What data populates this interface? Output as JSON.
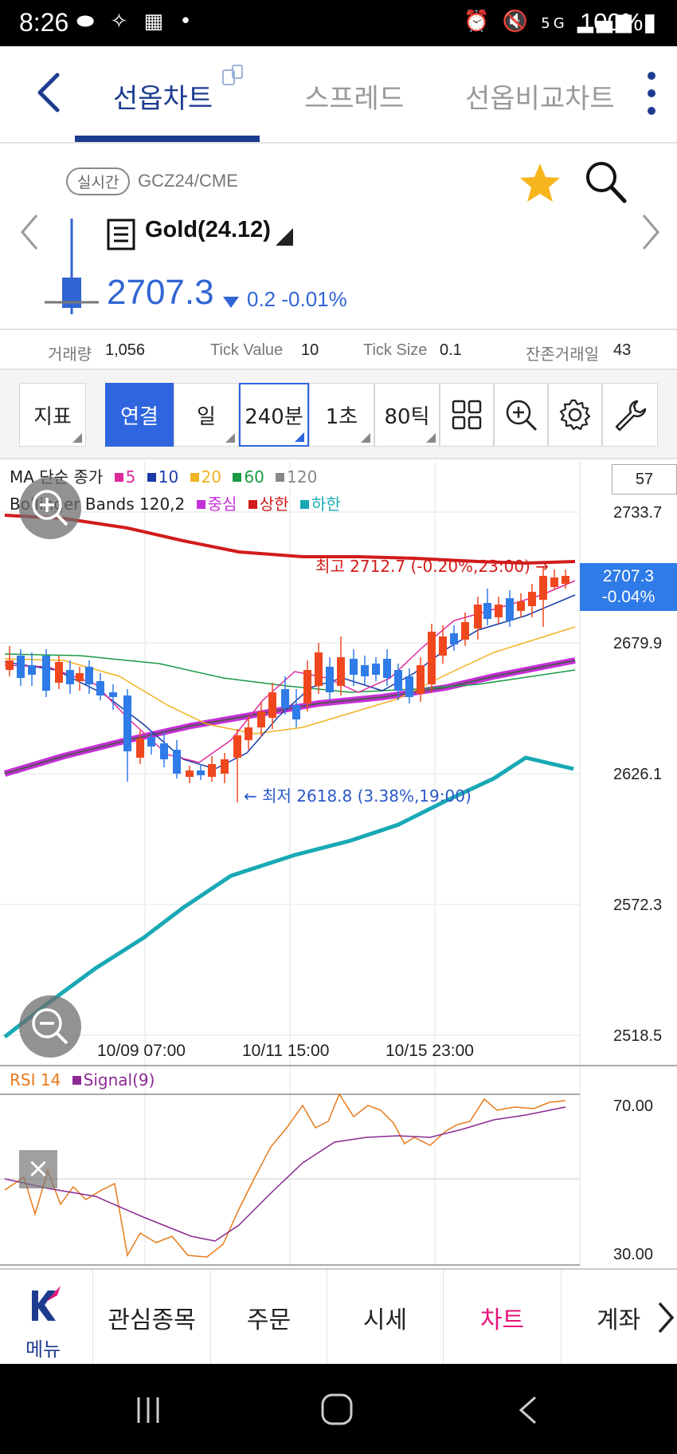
{
  "status_bar": {
    "time": "8:26",
    "battery": "100%",
    "net_badge": "5G"
  },
  "tabs": [
    {
      "label": "선옵차트",
      "active": true
    },
    {
      "label": "스프레드",
      "active": false
    },
    {
      "label": "선옵비교차트",
      "active": false
    }
  ],
  "instrument": {
    "realtime_badge": "실시간",
    "symbol": "GCZ24/CME",
    "name": "Gold(24.12)",
    "price": "2707.3",
    "change": "0.2",
    "change_pct": "-0.01%",
    "accent": "#3165d4"
  },
  "info": [
    {
      "label": "거래량",
      "value": "1,056"
    },
    {
      "label": "Tick Value",
      "value": "10"
    },
    {
      "label": "Tick Size",
      "value": "0.1"
    },
    {
      "label": "잔존거래일",
      "value": "43"
    }
  ],
  "toolbar": {
    "indicator": "지표",
    "linked": "연결",
    "day": "일",
    "interval": "240분",
    "seconds": "1초",
    "ticks": "80틱"
  },
  "chart": {
    "ma_legend": {
      "title": "MA 단순 종가",
      "periods": [
        "5",
        "10",
        "20",
        "60",
        "120"
      ]
    },
    "bb_legend": {
      "title": "Bollinger Bands 120,2",
      "center": "중심",
      "upper": "상한",
      "lower": "하한"
    },
    "visible_count": "57",
    "y_labels": [
      "2733.7",
      "2679.9",
      "2626.1",
      "2572.3",
      "2518.5"
    ],
    "last_price": "2707.3",
    "last_pct": "-0.04%",
    "x_labels": [
      "10/09 07:00",
      "10/11 15:00",
      "10/15 23:00"
    ],
    "high_annotation": "최고 2712.7 (-0.20%,23:00) →",
    "low_annotation": "← 최저 2618.8 (3.38%,19:00)",
    "rsi_legend": {
      "title": "RSI 14",
      "signal": "Signal(9)"
    },
    "rsi_labels": [
      "70.00",
      "30.00"
    ]
  },
  "bottom_nav": {
    "menu": "메뉴",
    "items": [
      "관심종목",
      "주문",
      "시세",
      "차트",
      "계좌"
    ],
    "active": "차트"
  }
}
